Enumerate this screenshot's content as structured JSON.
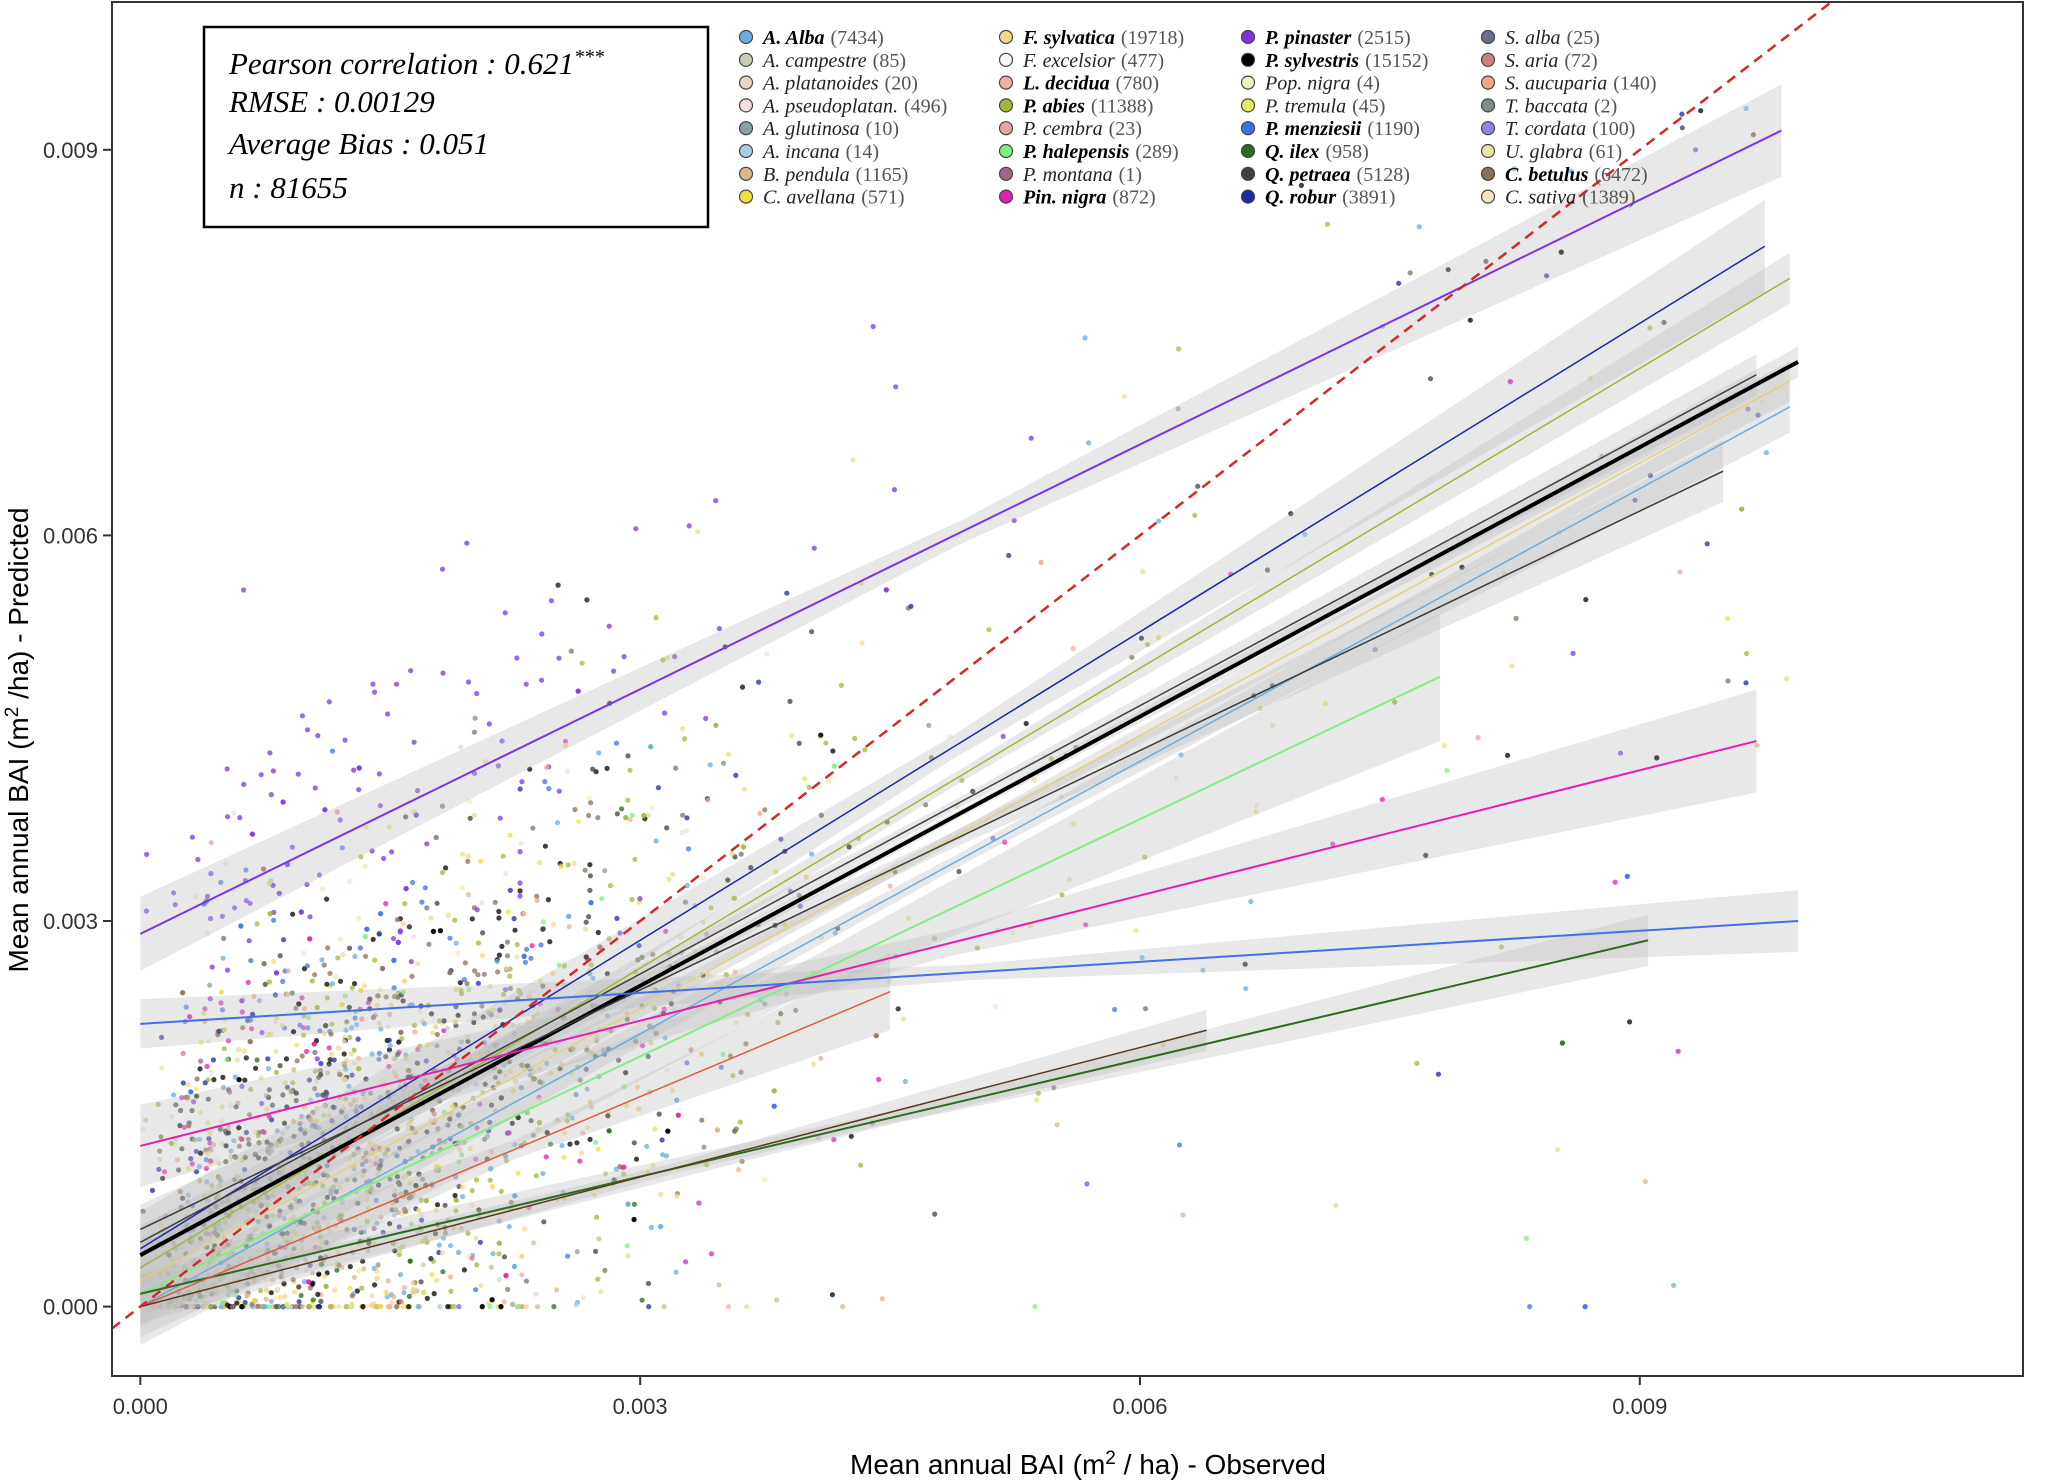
{
  "chart_data": {
    "type": "scatter",
    "xlabel": "Mean annual BAI (m² / ha) - Observed",
    "ylabel": "Mean annual BAI (m²  /ha) - Predicted",
    "xlim": [
      -0.00017,
      0.0113
    ],
    "ylim": [
      -0.00054,
      0.01015
    ],
    "x_ticks": [
      "0.000",
      "0.003",
      "0.006",
      "0.009"
    ],
    "y_ticks": [
      "0.000",
      "0.003",
      "0.006",
      "0.009"
    ],
    "grid": false,
    "reference_line": {
      "slope": 1,
      "intercept": 0,
      "color": "#d62728",
      "style": "dashed"
    },
    "stats": {
      "pearson": "Pearson correlation : 0.621",
      "pearson_sig": "***",
      "rmse": "RMSE : 0.00129",
      "bias": "Average Bias : 0.051",
      "n": "n : 81655"
    },
    "legend_placement": "top",
    "series": [
      {
        "name": "A. Alba",
        "count": "(7434)",
        "color": "#6aaee0",
        "bold": true
      },
      {
        "name": "A. campestre",
        "count": "(85)",
        "color": "#c9cbb8",
        "bold": false
      },
      {
        "name": "A. platanoides",
        "count": "(20)",
        "color": "#e8d5c4",
        "bold": false
      },
      {
        "name": "A. pseudoplatan.",
        "count": "(496)",
        "color": "#f4dede",
        "bold": false
      },
      {
        "name": "A. glutinosa",
        "count": "(10)",
        "color": "#8aa0a6",
        "bold": false
      },
      {
        "name": "A. incana",
        "count": "(14)",
        "color": "#a8cfe0",
        "bold": false
      },
      {
        "name": "B. pendula",
        "count": "(1165)",
        "color": "#d9b88a",
        "bold": false
      },
      {
        "name": "C. avellana",
        "count": "(571)",
        "color": "#f0e040",
        "bold": false
      },
      {
        "name": "F. sylvatica",
        "count": "(19718)",
        "color": "#f2d98a",
        "bold": true
      },
      {
        "name": "F. excelsior",
        "count": "(477)",
        "color": "#f8f8f0",
        "bold": false
      },
      {
        "name": "L. decidua",
        "count": "(780)",
        "color": "#f0b0a0",
        "bold": true
      },
      {
        "name": "P. abies",
        "count": "(11388)",
        "color": "#a0b838",
        "bold": true
      },
      {
        "name": "P. cembra",
        "count": "(23)",
        "color": "#e0a8a0",
        "bold": false
      },
      {
        "name": "P. halepensis",
        "count": "(289)",
        "color": "#80f080",
        "bold": true
      },
      {
        "name": "P. montana",
        "count": "(1)",
        "color": "#a06888",
        "bold": false
      },
      {
        "name": "Pin. nigra",
        "count": "(872)",
        "color": "#e020b0",
        "bold": true
      },
      {
        "name": "P. pinaster",
        "count": "(2515)",
        "color": "#7b35e0",
        "bold": true
      },
      {
        "name": "P. sylvestris",
        "count": "(15152)",
        "color": "#000000",
        "bold": true
      },
      {
        "name": "Pop. nigra",
        "count": "(4)",
        "color": "#f0f0c0",
        "bold": false
      },
      {
        "name": "P. tremula",
        "count": "(45)",
        "color": "#e8e860",
        "bold": false
      },
      {
        "name": "P. menziesii",
        "count": "(1190)",
        "color": "#4070e8",
        "bold": true
      },
      {
        "name": "Q. ilex",
        "count": "(958)",
        "color": "#2e6a20",
        "bold": true
      },
      {
        "name": "Q. petraea",
        "count": "(5128)",
        "color": "#404040",
        "bold": true
      },
      {
        "name": "Q. robur",
        "count": "(3891)",
        "color": "#1a2aa8",
        "bold": true
      },
      {
        "name": "S. alba",
        "count": "(25)",
        "color": "#6a7088",
        "bold": false
      },
      {
        "name": "S. aria",
        "count": "(72)",
        "color": "#d08080",
        "bold": false
      },
      {
        "name": "S. aucuparia",
        "count": "(140)",
        "color": "#f0a888",
        "bold": false
      },
      {
        "name": "T. baccata",
        "count": "(2)",
        "color": "#7a9080",
        "bold": false
      },
      {
        "name": "T. cordata",
        "count": "(100)",
        "color": "#8888e0",
        "bold": false
      },
      {
        "name": "U. glabra",
        "count": "(61)",
        "color": "#e8e8a0",
        "bold": false
      },
      {
        "name": "C. betulus",
        "count": "(6472)",
        "color": "#8a7058",
        "bold": true
      },
      {
        "name": "C. sativa",
        "count": "(1389)",
        "color": "#f4e4c0",
        "bold": false
      }
    ],
    "fits": [
      {
        "name": "P. pinaster",
        "color": "#7b35e0",
        "width": 2,
        "x": [
          0.0,
          0.00985
        ],
        "y": [
          0.0029,
          0.00915
        ],
        "band": 0.00018
      },
      {
        "name": "Q. robur",
        "color": "#1a2aa8",
        "width": 1.5,
        "x": [
          0.0,
          0.00975
        ],
        "y": [
          0.00045,
          0.00825
        ],
        "band": 0.00018
      },
      {
        "name": "P. abies",
        "color": "#a0b838",
        "width": 1.5,
        "x": [
          0.0,
          0.0099
        ],
        "y": [
          0.0003,
          0.008
        ],
        "band": 0.0001
      },
      {
        "name": "F. sylvatica",
        "color": "#e6cf78",
        "width": 1.5,
        "x": [
          0.0,
          0.0099
        ],
        "y": [
          0.0002,
          0.0072
        ],
        "band": 8e-05
      },
      {
        "name": "Q. petraea",
        "color": "#404040",
        "width": 1.5,
        "x": [
          0.0,
          0.0097
        ],
        "y": [
          0.0005,
          0.00725
        ],
        "band": 8e-05
      },
      {
        "name": "P. sylvestris",
        "color": "#000000",
        "width": 4,
        "x": [
          0.0,
          0.00995
        ],
        "y": [
          0.0004,
          0.00735
        ],
        "band": 6e-05
      },
      {
        "name": "A. Alba",
        "color": "#6aaee0",
        "width": 1.5,
        "x": [
          0.0,
          0.0099
        ],
        "y": [
          0.0,
          0.007
        ],
        "band": 0.0001
      },
      {
        "name": "C. betulus",
        "color": "#3a3a3a",
        "width": 1.5,
        "x": [
          0.0,
          0.0095
        ],
        "y": [
          0.0006,
          0.0065
        ],
        "band": 0.00012
      },
      {
        "name": "P. halepensis",
        "color": "#80f080",
        "width": 2,
        "x": [
          0.0,
          0.0078
        ],
        "y": [
          0.0001,
          0.0049
        ],
        "band": 0.00025
      },
      {
        "name": "Pin. nigra",
        "color": "#e020b0",
        "width": 2,
        "x": [
          0.0,
          0.0097
        ],
        "y": [
          0.00125,
          0.0044
        ],
        "band": 0.0002
      },
      {
        "name": "P. menziesii",
        "color": "#4070e8",
        "width": 2,
        "x": [
          0.0,
          0.00995
        ],
        "y": [
          0.0022,
          0.003
        ],
        "band": 0.00012
      },
      {
        "name": "Q. ilex",
        "color": "#2e6a20",
        "width": 2,
        "x": [
          0.0,
          0.00905
        ],
        "y": [
          0.0001,
          0.00285
        ],
        "band": 0.0001
      },
      {
        "name": "L. decidua",
        "color": "#e05a40",
        "width": 1.5,
        "x": [
          0.0,
          0.0045
        ],
        "y": [
          0.0,
          0.00245
        ],
        "band": 0.00015
      },
      {
        "name": "B. pendula",
        "color": "#5a3a1a",
        "width": 1.5,
        "x": [
          0.0,
          0.0064
        ],
        "y": [
          0.0,
          0.00215
        ],
        "band": 8e-05
      }
    ]
  }
}
